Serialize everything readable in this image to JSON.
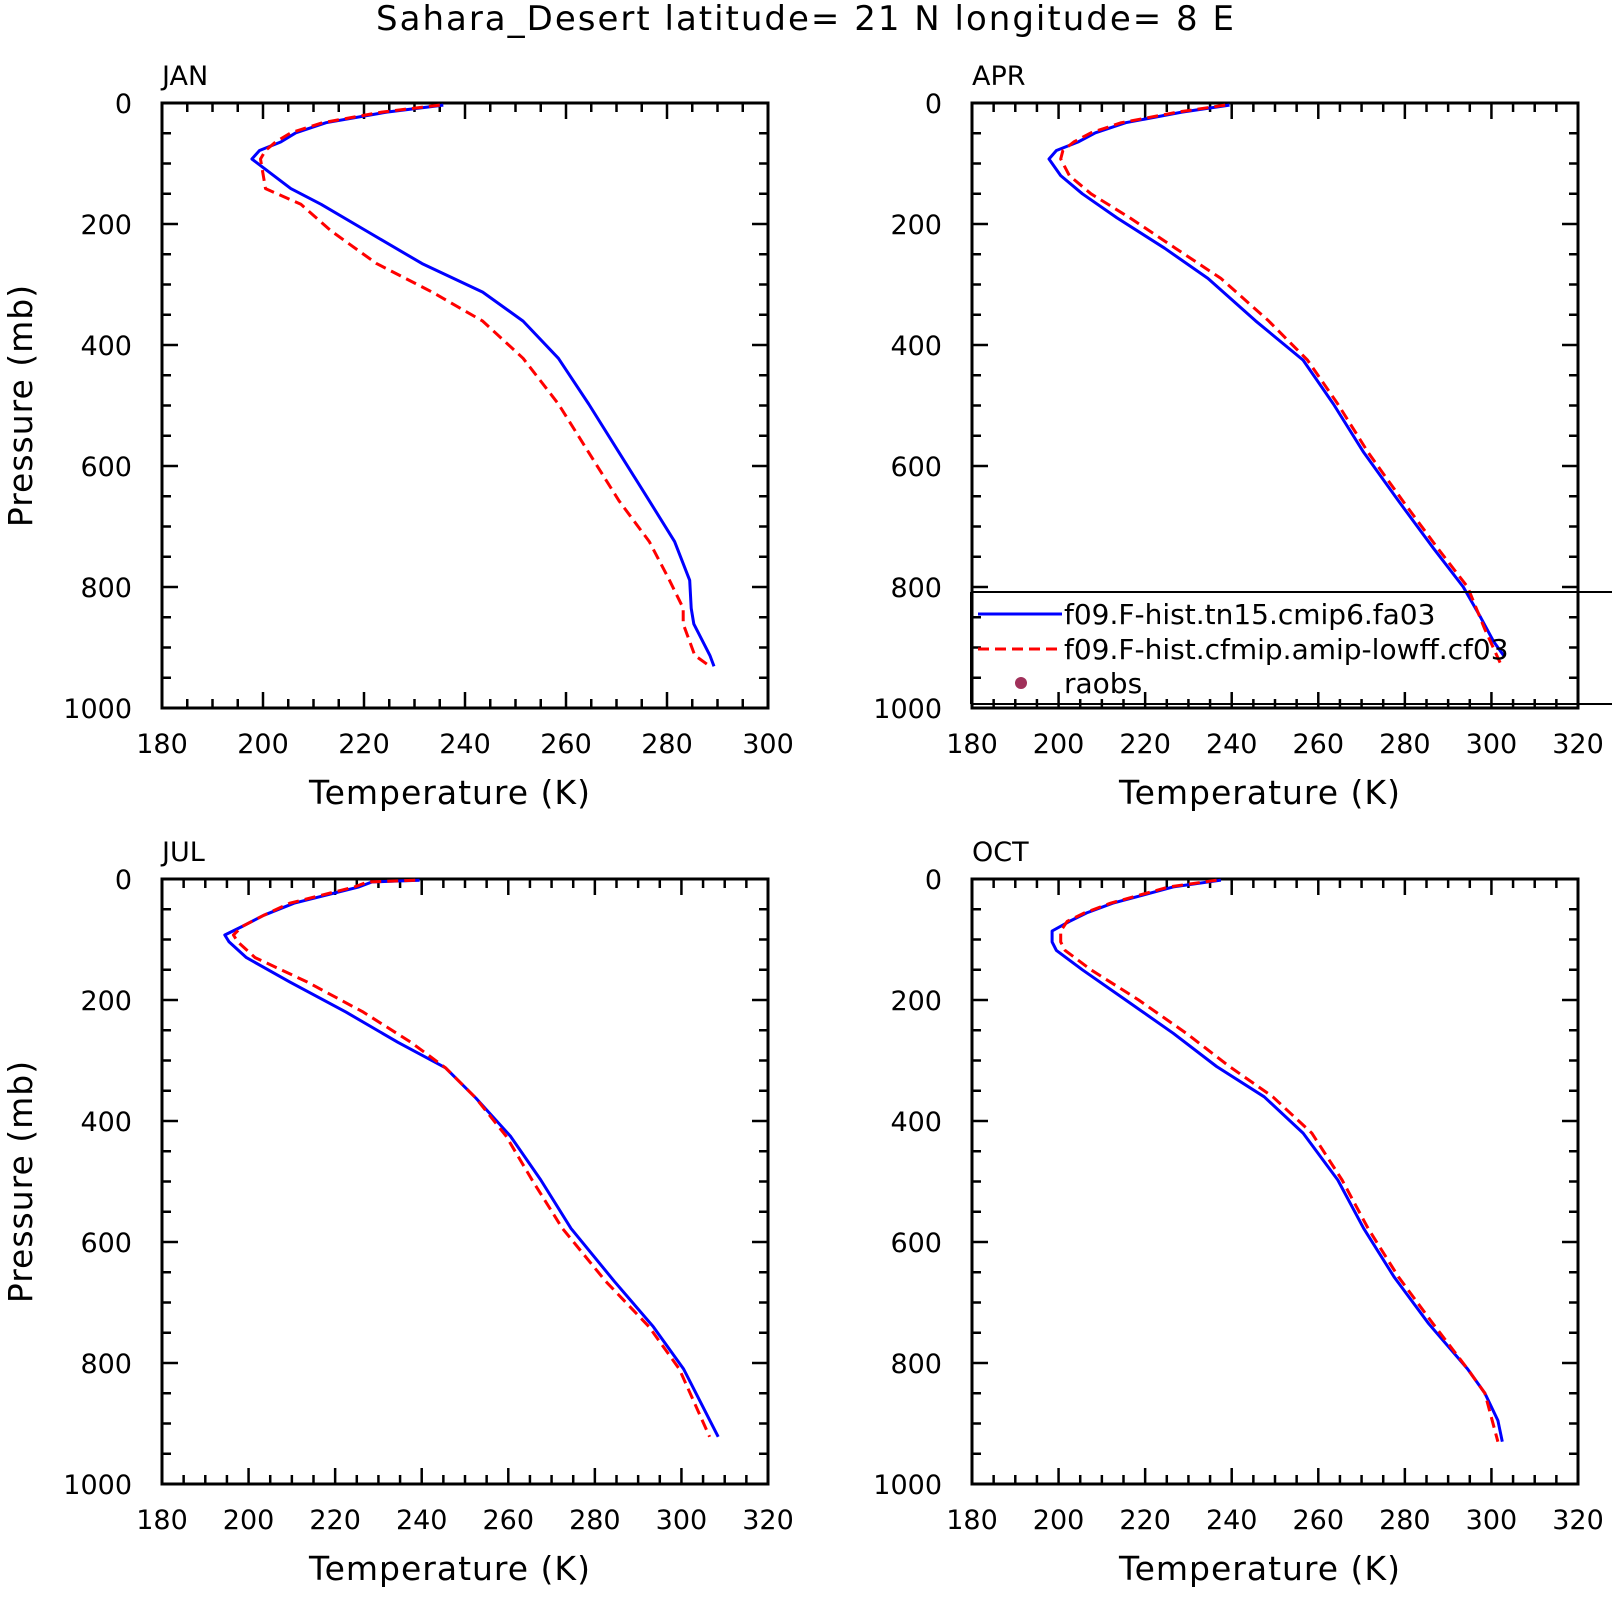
{
  "title": "Sahara_Desert  latitude= 21 N longitude= 8 E",
  "colors": {
    "model1": "#0000ff",
    "model2": "#ff0000",
    "raobs": "#a0305a"
  },
  "legend": {
    "entries": [
      {
        "label": "f09.F-hist.tn15.cmip6.fa03",
        "color": "#0000ff",
        "style": "solid"
      },
      {
        "label": "f09.F-hist.cfmip.amip-lowff.cf03",
        "color": "#ff0000",
        "style": "dashed"
      },
      {
        "label": "raobs",
        "color": "#a0305a",
        "style": "marker"
      }
    ]
  },
  "chart_data": [
    {
      "type": "line",
      "panel": "JAN",
      "xlabel": "Temperature (K)",
      "ylabel": "Pressure (mb)",
      "xlim": [
        180,
        300
      ],
      "ylim": [
        1000,
        0
      ],
      "xticks": [
        180,
        200,
        220,
        240,
        260,
        280,
        300
      ],
      "yticks": [
        0,
        200,
        400,
        600,
        800,
        1000
      ],
      "series": [
        {
          "name": "f09.F-hist.tn15.cmip6.fa03",
          "color": "#0000ff",
          "style": "solid",
          "x": [
            235.7,
            224.5,
            212.5,
            206.5,
            203.5,
            199.3,
            197.8,
            205.5,
            211.5,
            220.5,
            231.5,
            243.5,
            251.5,
            258.5,
            264.5,
            270.5,
            276.5,
            281.5,
            284.5,
            284.8,
            285.3,
            288.5,
            289.3
          ],
          "y": [
            3.5,
            15,
            32.5,
            49.3,
            64.5,
            78.5,
            92.5,
            141.5,
            167.5,
            211.5,
            265.5,
            312.5,
            360.5,
            422,
            497.5,
            577.5,
            657.5,
            725,
            789,
            835,
            861,
            913,
            931
          ]
        },
        {
          "name": "f09.F-hist.cfmip.amip-lowff.cf03",
          "color": "#ff0000",
          "style": "dashed",
          "x": [
            235.0,
            223.5,
            211.8,
            205.5,
            202.5,
            200.5,
            199.5,
            200.5,
            207.5,
            213.5,
            222.5,
            233.5,
            243.5,
            251.5,
            258.5,
            264.5,
            270.5,
            276.5,
            280.5,
            283.2,
            283.2,
            285.5,
            288.5
          ],
          "y": [
            3.5,
            15,
            32.5,
            49.3,
            64.5,
            78.5,
            92.5,
            141.5,
            167.5,
            211.5,
            265.5,
            312.5,
            360.5,
            422,
            497.5,
            577.5,
            657.5,
            725,
            789,
            835,
            861,
            913,
            931
          ]
        }
      ]
    },
    {
      "type": "line",
      "panel": "APR",
      "xlabel": "Temperature (K)",
      "ylabel": "",
      "xlim": [
        180,
        320
      ],
      "ylim": [
        1000,
        0
      ],
      "xticks": [
        180,
        200,
        220,
        240,
        260,
        280,
        300,
        320
      ],
      "yticks": [
        0,
        200,
        400,
        600,
        800,
        1000
      ],
      "series": [
        {
          "name": "f09.F-hist.tn15.cmip6.fa03",
          "color": "#0000ff",
          "style": "solid",
          "x": [
            239.5,
            228.5,
            215.5,
            208.5,
            204.5,
            199.5,
            197.8,
            200.5,
            205.5,
            213.5,
            224.5,
            234.5,
            245.5,
            256.5,
            263.5,
            270.5,
            278.5,
            286.5,
            293.5,
            297.5,
            300.5,
            303.0
          ],
          "y": [
            3.5,
            15,
            32.5,
            49.3,
            64.5,
            78.5,
            92.5,
            120,
            150,
            190,
            240,
            290,
            360,
            425,
            497.5,
            577.5,
            657.5,
            735,
            800,
            850,
            890,
            915
          ]
        },
        {
          "name": "f09.F-hist.cfmip.amip-lowff.cf03",
          "color": "#ff0000",
          "style": "dashed",
          "x": [
            238.5,
            227.5,
            214.5,
            207.5,
            203.5,
            201.0,
            200.5,
            202.5,
            207.5,
            216.5,
            227.0,
            237.5,
            248.5,
            257.5,
            264.5,
            271.5,
            279.5,
            287.5,
            294.5,
            298.5,
            302.0
          ],
          "y": [
            3.5,
            15,
            32.5,
            49.3,
            64.5,
            78.5,
            92.5,
            120,
            150,
            190,
            240,
            290,
            360,
            425,
            497.5,
            577.5,
            657.5,
            735,
            800,
            870,
            925
          ]
        }
      ]
    },
    {
      "type": "line",
      "panel": "JUL",
      "xlabel": "Temperature (K)",
      "ylabel": "Pressure (mb)",
      "xlim": [
        180,
        320
      ],
      "ylim": [
        1000,
        0
      ],
      "xticks": [
        180,
        200,
        220,
        240,
        260,
        280,
        300,
        320
      ],
      "yticks": [
        0,
        200,
        400,
        600,
        800,
        1000
      ],
      "series": [
        {
          "name": "f09.F-hist.tn15.cmip6.fa03",
          "color": "#0000ff",
          "style": "solid",
          "x": [
            239.5,
            228.5,
            225.5,
            210.5,
            203.5,
            198.5,
            194.5,
            195.5,
            199.5,
            209.5,
            222.5,
            234.5,
            245.5,
            252.5,
            260.5,
            267.5,
            274.5,
            284.5,
            293.5,
            300.5,
            308.5
          ],
          "y": [
            2,
            5,
            13,
            40,
            60,
            78.5,
            92.5,
            104,
            130,
            170,
            220,
            270,
            312,
            362,
            425,
            497.5,
            577.5,
            665,
            740,
            810,
            922
          ]
        },
        {
          "name": "f09.F-hist.cfmip.amip-lowff.cf03",
          "color": "#ff0000",
          "style": "dashed",
          "x": [
            238.5,
            227.5,
            224.5,
            209.5,
            203.5,
            198.5,
            196.5,
            197.5,
            201.5,
            213.5,
            226.5,
            237.5,
            245.5,
            252.5,
            259.5,
            265.5,
            272.5,
            282.5,
            292.5,
            299.5,
            306.5
          ],
          "y": [
            2,
            5,
            13,
            40,
            60,
            78.5,
            92.5,
            104,
            130,
            170,
            220,
            270,
            312,
            362,
            425,
            497.5,
            577.5,
            665,
            740,
            810,
            922
          ]
        }
      ]
    },
    {
      "type": "line",
      "panel": "OCT",
      "xlabel": "Temperature (K)",
      "ylabel": "",
      "xlim": [
        180,
        320
      ],
      "ylim": [
        1000,
        0
      ],
      "xticks": [
        180,
        200,
        220,
        240,
        260,
        280,
        300,
        320
      ],
      "yticks": [
        0,
        200,
        400,
        600,
        800,
        1000
      ],
      "series": [
        {
          "name": "f09.F-hist.tn15.cmip6.fa03",
          "color": "#0000ff",
          "style": "solid",
          "x": [
            237.5,
            226.5,
            212.5,
            206.5,
            202.5,
            198.5,
            198.5,
            199.5,
            205.5,
            215.5,
            226.5,
            236.5,
            247.5,
            256.5,
            264.5,
            270.5,
            277.5,
            285.5,
            294.5,
            298.5,
            301.5,
            302.5
          ],
          "y": [
            2,
            13,
            40,
            56,
            70,
            86,
            104,
            118,
            150,
            200,
            255,
            310,
            360,
            420,
            497.5,
            577.5,
            657.5,
            735,
            810,
            850,
            895,
            930
          ]
        },
        {
          "name": "f09.F-hist.cfmip.amip-lowff.cf03",
          "color": "#ff0000",
          "style": "dashed",
          "x": [
            236.5,
            225.5,
            212.0,
            206.0,
            202.0,
            200.5,
            200.5,
            201.5,
            207.5,
            218.5,
            229.5,
            239.5,
            249.5,
            258.5,
            265.5,
            271.5,
            278.5,
            286.5,
            294.5,
            298.5,
            301.5
          ],
          "y": [
            2,
            13,
            40,
            56,
            70,
            86,
            104,
            118,
            150,
            200,
            255,
            310,
            360,
            420,
            497.5,
            577.5,
            657.5,
            735,
            810,
            850,
            930
          ]
        }
      ]
    }
  ]
}
